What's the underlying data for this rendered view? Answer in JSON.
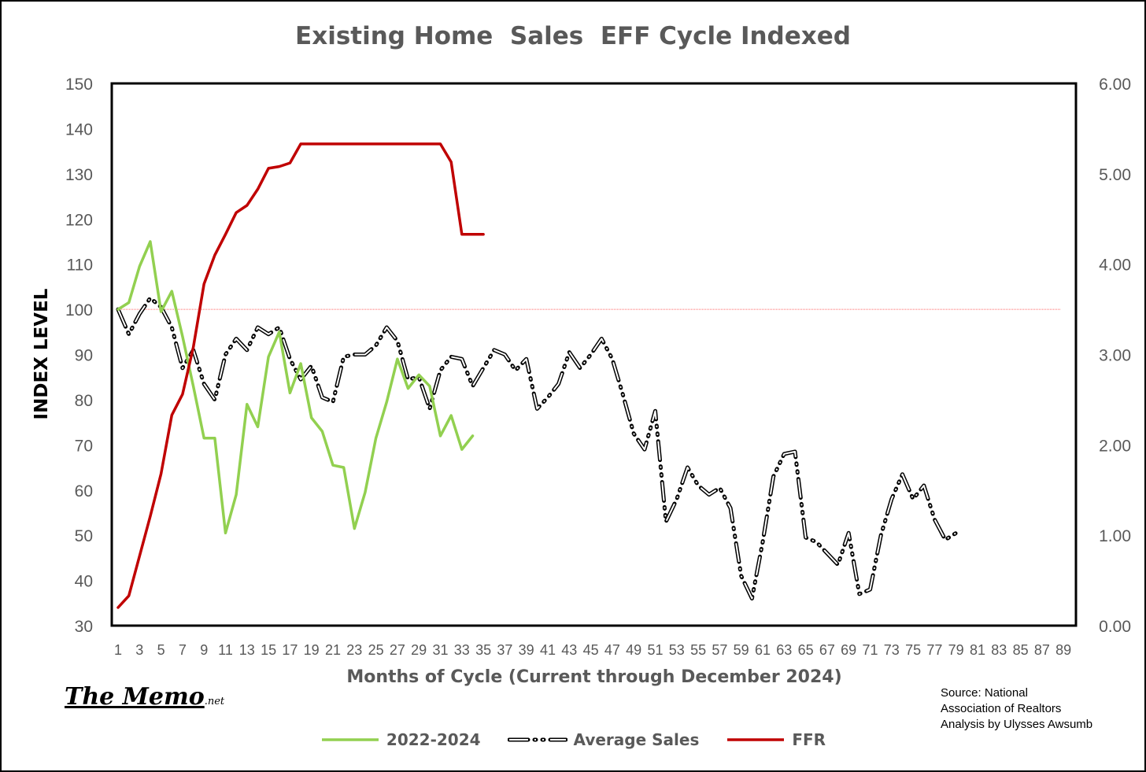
{
  "chart_data": {
    "type": "line",
    "title": "Existing Home  Sales  EFF Cycle Indexed",
    "xlabel": "Months of Cycle (Current through December 2024)",
    "ylabel": "INDEX LEVEL",
    "x_range": [
      1,
      90
    ],
    "x_tick_labels": [
      "1",
      "3",
      "5",
      "7",
      "9",
      "11",
      "13",
      "15",
      "17",
      "19",
      "21",
      "23",
      "25",
      "27",
      "29",
      "31",
      "33",
      "35",
      "37",
      "39",
      "41",
      "43",
      "45",
      "47",
      "49",
      "51",
      "53",
      "55",
      "57",
      "59",
      "61",
      "63",
      "65",
      "67",
      "69",
      "71",
      "73",
      "75",
      "77",
      "79",
      "81",
      "83",
      "85",
      "87",
      "89"
    ],
    "ylim": [
      30,
      150
    ],
    "y_ticks": [
      30,
      40,
      50,
      60,
      70,
      80,
      90,
      100,
      110,
      120,
      130,
      140,
      150
    ],
    "y2lim": [
      0,
      6
    ],
    "y2_tick_labels": [
      "0.00",
      "1.00",
      "2.00",
      "3.00",
      "4.00",
      "5.00",
      "6.00"
    ],
    "reference_line": {
      "y": 100,
      "color": "#ff6666"
    },
    "grid": false,
    "legend_position": "bottom",
    "series": [
      {
        "name": "2022-2024",
        "axis": "left",
        "color": "#92d050",
        "style": "solid",
        "values": [
          100,
          101.5,
          109.5,
          115,
          99.5,
          104,
          94,
          83,
          71.5,
          71.5,
          50.5,
          59,
          79,
          74,
          89.5,
          95,
          81.5,
          88,
          76,
          73,
          65.5,
          65,
          51.5,
          59.5,
          71.5,
          79.5,
          89,
          82.5,
          85.5,
          83,
          72,
          76.5,
          69,
          72
        ]
      },
      {
        "name": "Average Sales",
        "axis": "left",
        "color": "#000000",
        "style": "dashdot",
        "values": [
          100,
          94.5,
          99,
          102.5,
          100.5,
          96,
          87,
          91,
          83.5,
          80,
          90,
          93.5,
          91,
          96,
          94.5,
          96,
          89,
          84.5,
          87.5,
          80.5,
          79.5,
          89.5,
          90,
          90,
          92,
          96,
          93,
          84.5,
          85,
          78,
          86.5,
          89.5,
          89,
          83,
          87,
          91,
          90,
          86.5,
          89,
          78,
          80.5,
          83.5,
          90.5,
          87,
          90,
          93.5,
          89,
          81,
          72.5,
          69,
          77.5,
          53,
          58,
          65,
          61,
          59,
          60.5,
          56,
          41,
          36,
          48.5,
          63,
          68,
          68.5,
          49.5,
          48.5,
          46,
          43.5,
          50.5,
          37,
          38,
          50,
          58,
          63.5,
          58,
          61,
          53.5,
          49,
          50.5
        ]
      },
      {
        "name": "FFR",
        "axis": "right",
        "color": "#c00000",
        "style": "solid",
        "values": [
          0.2,
          0.33,
          0.77,
          1.21,
          1.68,
          2.33,
          2.56,
          3.08,
          3.78,
          4.1,
          4.33,
          4.57,
          4.65,
          4.83,
          5.06,
          5.08,
          5.12,
          5.33,
          5.33,
          5.33,
          5.33,
          5.33,
          5.33,
          5.33,
          5.33,
          5.33,
          5.33,
          5.33,
          5.33,
          5.33,
          5.33,
          5.13,
          4.33,
          4.33,
          4.33
        ]
      }
    ]
  },
  "watermark": {
    "main": "The Memo",
    "suffix": ".net"
  },
  "source_lines": [
    "Source: National",
    "Association of Realtors",
    "Analysis by Ulysses Awsumb"
  ]
}
